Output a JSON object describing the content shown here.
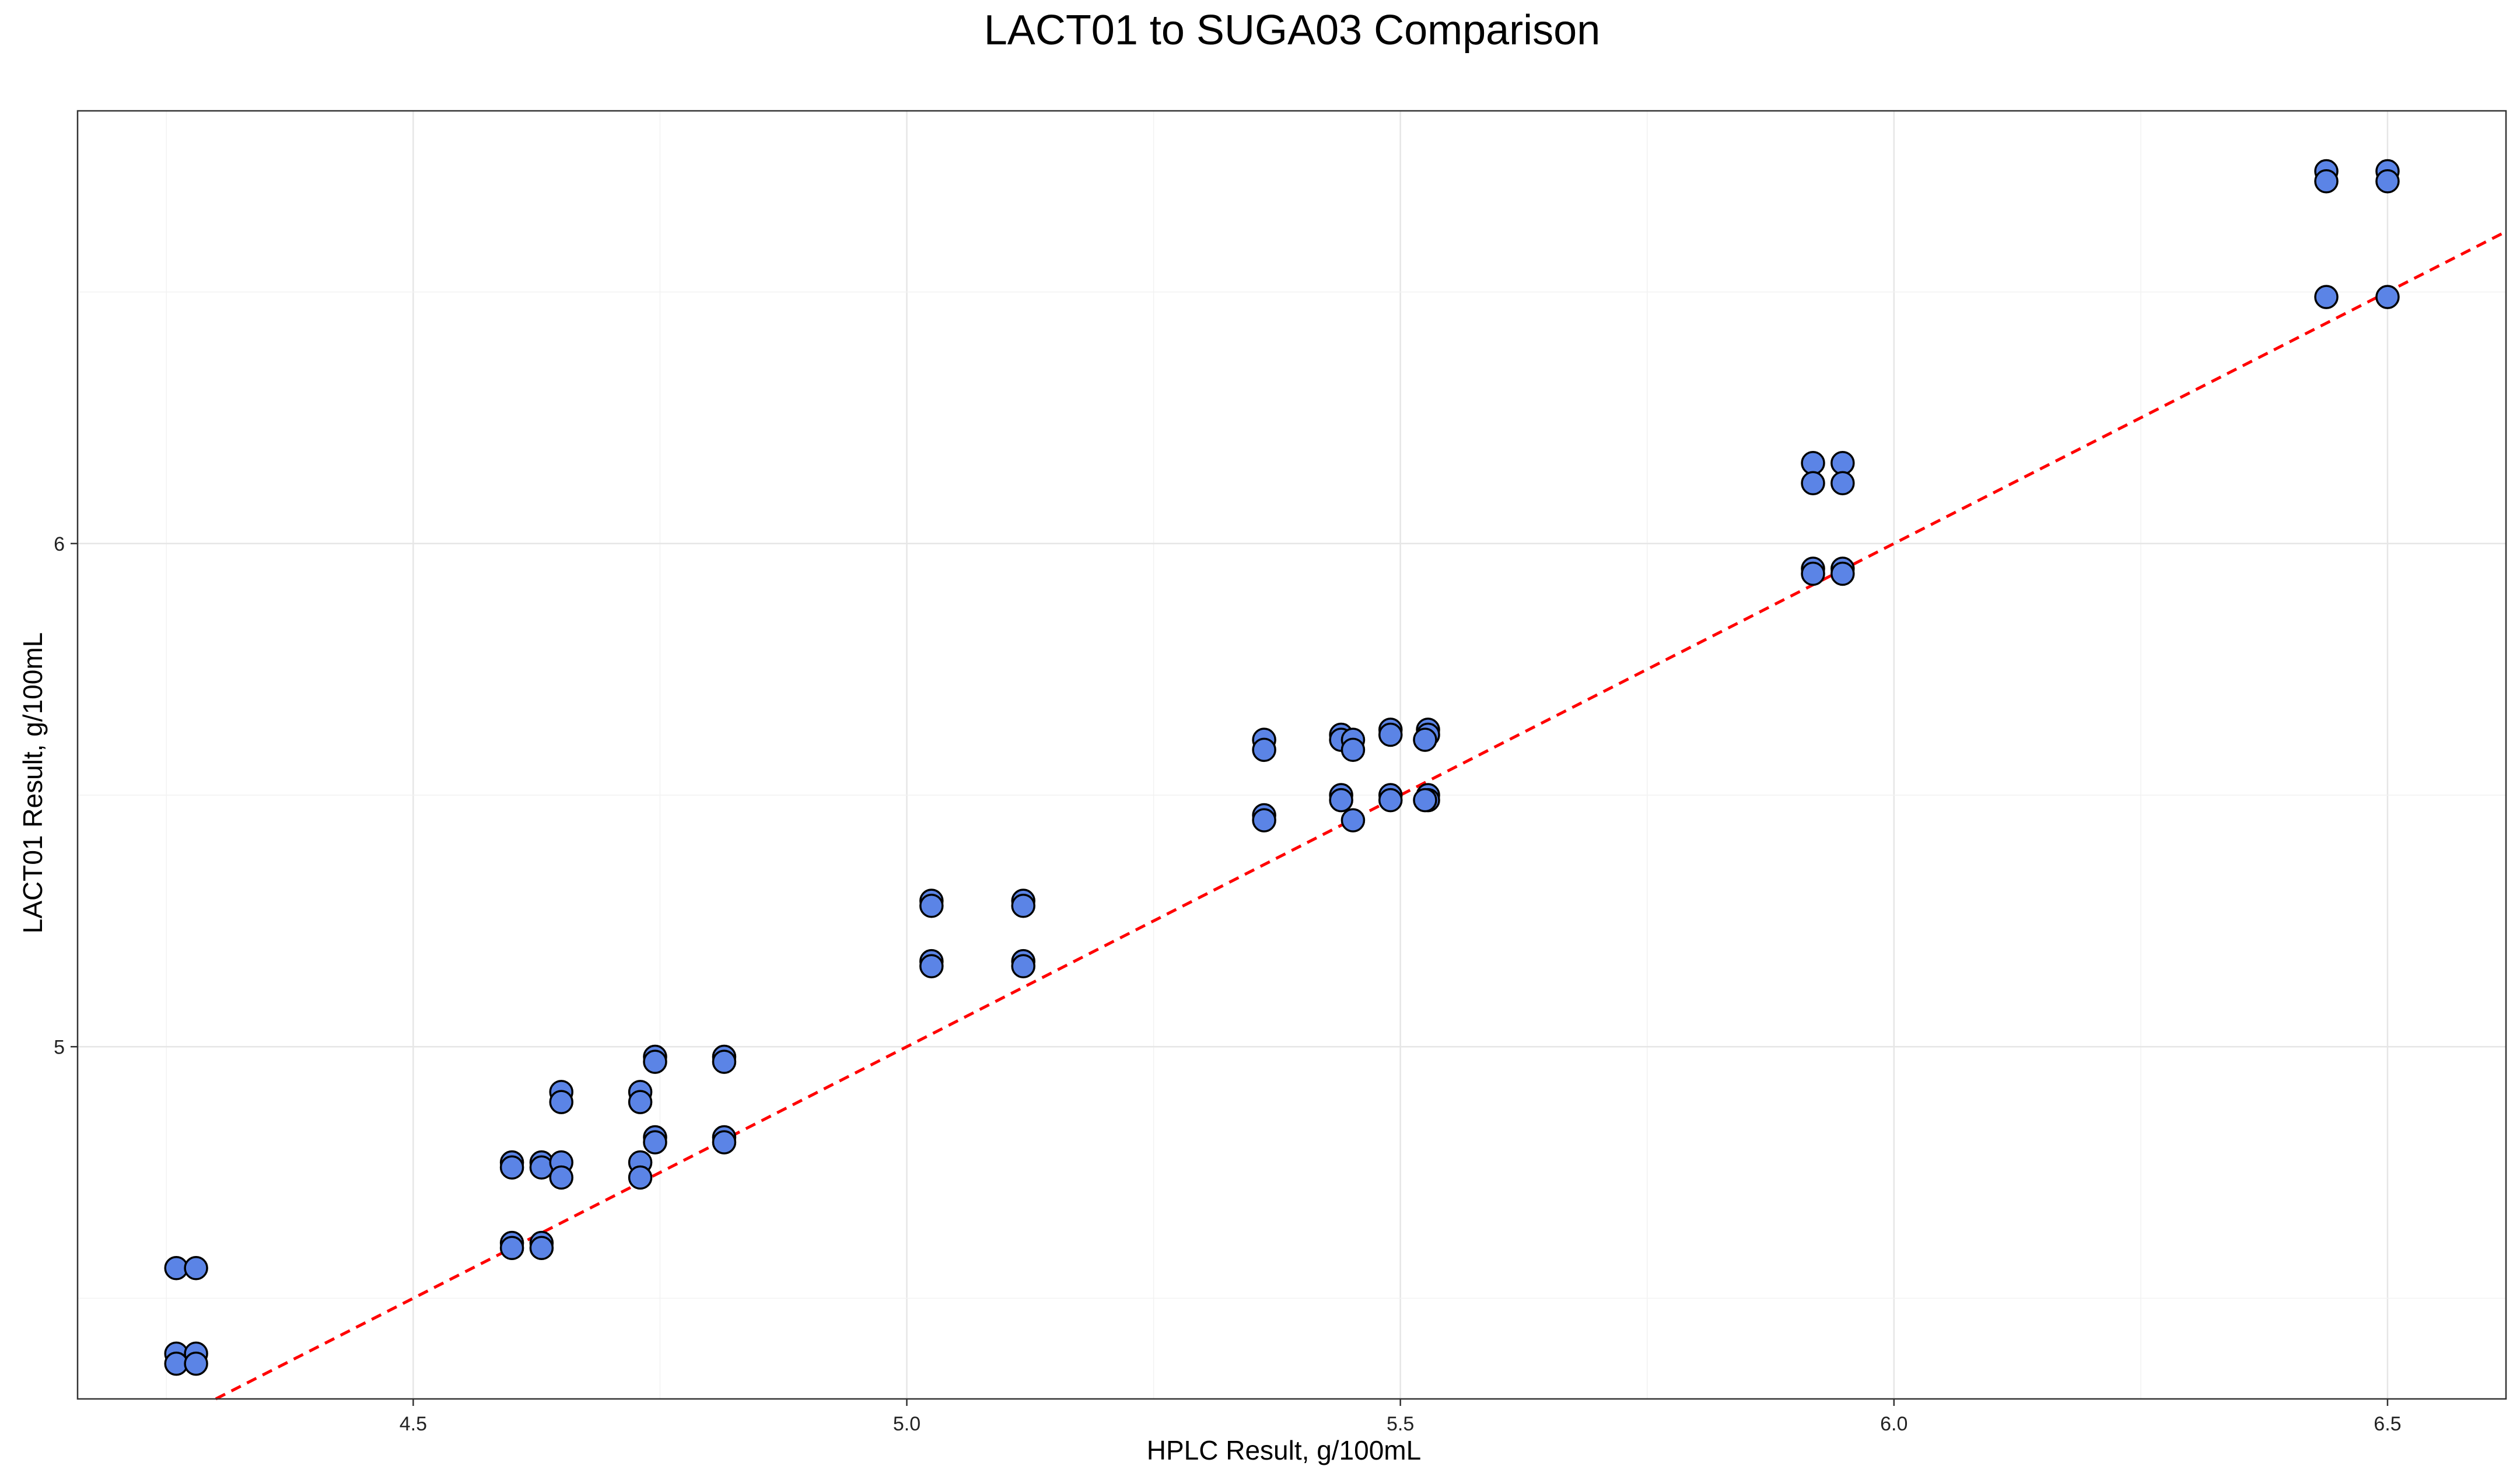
{
  "chart_data": {
    "type": "scatter",
    "title": "LACT01 to SUGA03 Comparison",
    "xlabel": "HPLC Result, g/100mL",
    "ylabel": "LACT01 Result, g/100mL",
    "xlim": [
      4.16,
      6.62
    ],
    "ylim": [
      4.3,
      6.86
    ],
    "x_ticks": [
      4.5,
      5.0,
      5.5,
      6.0,
      6.5
    ],
    "x_tick_labels": [
      "4.5",
      "5.0",
      "5.5",
      "6.0",
      "6.5"
    ],
    "y_ticks": [
      5,
      6
    ],
    "y_tick_labels": [
      "5",
      "6"
    ],
    "grid": true,
    "reference_line": {
      "type": "identity",
      "style": "dashed",
      "color": "#ff0000"
    },
    "point_fill": "#5b84e6",
    "point_stroke": "#000000",
    "points": [
      {
        "x": 4.26,
        "y": 4.56
      },
      {
        "x": 4.28,
        "y": 4.56
      },
      {
        "x": 4.26,
        "y": 4.39
      },
      {
        "x": 4.28,
        "y": 4.39
      },
      {
        "x": 4.26,
        "y": 4.37
      },
      {
        "x": 4.28,
        "y": 4.37
      },
      {
        "x": 4.6,
        "y": 4.77
      },
      {
        "x": 4.6,
        "y": 4.76
      },
      {
        "x": 4.6,
        "y": 4.61
      },
      {
        "x": 4.6,
        "y": 4.6
      },
      {
        "x": 4.63,
        "y": 4.77
      },
      {
        "x": 4.63,
        "y": 4.76
      },
      {
        "x": 4.63,
        "y": 4.61
      },
      {
        "x": 4.63,
        "y": 4.6
      },
      {
        "x": 4.65,
        "y": 4.91
      },
      {
        "x": 4.65,
        "y": 4.89
      },
      {
        "x": 4.65,
        "y": 4.77
      },
      {
        "x": 4.65,
        "y": 4.74
      },
      {
        "x": 4.73,
        "y": 4.91
      },
      {
        "x": 4.73,
        "y": 4.89
      },
      {
        "x": 4.73,
        "y": 4.77
      },
      {
        "x": 4.73,
        "y": 4.74
      },
      {
        "x": 4.745,
        "y": 4.98
      },
      {
        "x": 4.745,
        "y": 4.97
      },
      {
        "x": 4.745,
        "y": 4.82
      },
      {
        "x": 4.745,
        "y": 4.81
      },
      {
        "x": 4.815,
        "y": 4.98
      },
      {
        "x": 4.815,
        "y": 4.97
      },
      {
        "x": 4.815,
        "y": 4.82
      },
      {
        "x": 4.815,
        "y": 4.81
      },
      {
        "x": 5.025,
        "y": 5.29
      },
      {
        "x": 5.025,
        "y": 5.28
      },
      {
        "x": 5.025,
        "y": 5.17
      },
      {
        "x": 5.025,
        "y": 5.16
      },
      {
        "x": 5.118,
        "y": 5.29
      },
      {
        "x": 5.118,
        "y": 5.28
      },
      {
        "x": 5.118,
        "y": 5.17
      },
      {
        "x": 5.118,
        "y": 5.16
      },
      {
        "x": 5.362,
        "y": 5.61
      },
      {
        "x": 5.362,
        "y": 5.59
      },
      {
        "x": 5.362,
        "y": 5.46
      },
      {
        "x": 5.362,
        "y": 5.45
      },
      {
        "x": 5.44,
        "y": 5.62
      },
      {
        "x": 5.44,
        "y": 5.61
      },
      {
        "x": 5.44,
        "y": 5.5
      },
      {
        "x": 5.44,
        "y": 5.49
      },
      {
        "x": 5.452,
        "y": 5.61
      },
      {
        "x": 5.452,
        "y": 5.59
      },
      {
        "x": 5.452,
        "y": 5.45
      },
      {
        "x": 5.49,
        "y": 5.63
      },
      {
        "x": 5.49,
        "y": 5.62
      },
      {
        "x": 5.49,
        "y": 5.5
      },
      {
        "x": 5.49,
        "y": 5.49
      },
      {
        "x": 5.528,
        "y": 5.63
      },
      {
        "x": 5.528,
        "y": 5.62
      },
      {
        "x": 5.528,
        "y": 5.5
      },
      {
        "x": 5.528,
        "y": 5.49
      },
      {
        "x": 5.525,
        "y": 5.61
      },
      {
        "x": 5.525,
        "y": 5.49
      },
      {
        "x": 5.918,
        "y": 6.16
      },
      {
        "x": 5.918,
        "y": 6.12
      },
      {
        "x": 5.918,
        "y": 5.95
      },
      {
        "x": 5.918,
        "y": 5.94
      },
      {
        "x": 5.948,
        "y": 6.16
      },
      {
        "x": 5.948,
        "y": 6.12
      },
      {
        "x": 5.948,
        "y": 5.95
      },
      {
        "x": 5.948,
        "y": 5.94
      },
      {
        "x": 6.438,
        "y": 6.74
      },
      {
        "x": 6.438,
        "y": 6.72
      },
      {
        "x": 6.438,
        "y": 6.49
      },
      {
        "x": 6.5,
        "y": 6.74
      },
      {
        "x": 6.5,
        "y": 6.72
      },
      {
        "x": 6.5,
        "y": 6.49
      }
    ]
  }
}
